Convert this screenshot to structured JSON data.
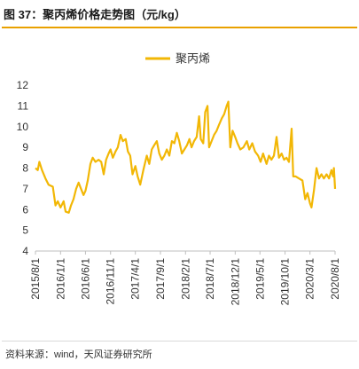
{
  "header": {
    "title": "图 37：聚丙烯价格走势图（元/kg）"
  },
  "footer": {
    "source": "资料来源：wind，天风证券研究所"
  },
  "chart_data": {
    "type": "line",
    "title": "",
    "xlabel": "",
    "ylabel": "",
    "ylim": [
      4,
      12
    ],
    "yticks": [
      4,
      5,
      6,
      7,
      8,
      9,
      10,
      11,
      12
    ],
    "xticks": [
      "2015/8/1",
      "2016/1/1",
      "2016/6/1",
      "2016/11/1",
      "2017/4/1",
      "2017/9/1",
      "2018/2/1",
      "2018/7/1",
      "2018/12/1",
      "2019/5/1",
      "2019/10/1",
      "2020/3/1",
      "2020/8/1"
    ],
    "grid": false,
    "legend": "top",
    "color": "#f2b705",
    "series": [
      {
        "name": "聚丙烯",
        "points": [
          [
            "2015/8/1",
            8.0
          ],
          [
            "2015/8/15",
            7.9
          ],
          [
            "2015/8/25",
            8.3
          ],
          [
            "2015/9/10",
            7.9
          ],
          [
            "2015/10/1",
            7.5
          ],
          [
            "2015/10/20",
            7.2
          ],
          [
            "2015/11/15",
            7.1
          ],
          [
            "2015/12/1",
            6.2
          ],
          [
            "2015/12/15",
            6.4
          ],
          [
            "2016/1/1",
            6.1
          ],
          [
            "2016/1/20",
            6.4
          ],
          [
            "2016/2/1",
            5.9
          ],
          [
            "2016/2/20",
            5.85
          ],
          [
            "2016/3/5",
            6.2
          ],
          [
            "2016/3/20",
            6.5
          ],
          [
            "2016/4/5",
            7.0
          ],
          [
            "2016/4/20",
            7.3
          ],
          [
            "2016/5/5",
            7.0
          ],
          [
            "2016/5/20",
            6.7
          ],
          [
            "2016/6/1",
            6.9
          ],
          [
            "2016/6/15",
            7.4
          ],
          [
            "2016/7/1",
            8.2
          ],
          [
            "2016/7/15",
            8.5
          ],
          [
            "2016/8/1",
            8.3
          ],
          [
            "2016/8/20",
            8.4
          ],
          [
            "2016/9/5",
            8.3
          ],
          [
            "2016/9/20",
            7.7
          ],
          [
            "2016/10/5",
            8.4
          ],
          [
            "2016/10/20",
            8.7
          ],
          [
            "2016/11/1",
            8.9
          ],
          [
            "2016/11/15",
            8.5
          ],
          [
            "2016/12/1",
            8.8
          ],
          [
            "2016/12/15",
            9.0
          ],
          [
            "2017/1/1",
            9.6
          ],
          [
            "2017/1/15",
            9.3
          ],
          [
            "2017/2/1",
            9.4
          ],
          [
            "2017/2/15",
            8.8
          ],
          [
            "2017/3/1",
            8.6
          ],
          [
            "2017/3/15",
            7.7
          ],
          [
            "2017/4/1",
            8.1
          ],
          [
            "2017/4/15",
            7.6
          ],
          [
            "2017/5/1",
            7.2
          ],
          [
            "2017/5/20",
            7.9
          ],
          [
            "2017/6/10",
            8.6
          ],
          [
            "2017/6/25",
            8.2
          ],
          [
            "2017/7/10",
            8.9
          ],
          [
            "2017/7/25",
            9.1
          ],
          [
            "2017/8/10",
            9.3
          ],
          [
            "2017/8/25",
            8.7
          ],
          [
            "2017/9/10",
            8.4
          ],
          [
            "2017/9/25",
            8.6
          ],
          [
            "2017/10/10",
            8.9
          ],
          [
            "2017/10/25",
            8.6
          ],
          [
            "2017/11/10",
            9.3
          ],
          [
            "2017/11/25",
            9.2
          ],
          [
            "2017/12/10",
            9.7
          ],
          [
            "2017/12/25",
            9.3
          ],
          [
            "2018/1/10",
            8.7
          ],
          [
            "2018/1/25",
            8.9
          ],
          [
            "2018/2/10",
            9.1
          ],
          [
            "2018/2/25",
            9.4
          ],
          [
            "2018/3/10",
            9.0
          ],
          [
            "2018/3/25",
            9.3
          ],
          [
            "2018/4/10",
            9.5
          ],
          [
            "2018/4/25",
            10.5
          ],
          [
            "2018/5/5",
            9.4
          ],
          [
            "2018/5/20",
            9.2
          ],
          [
            "2018/6/1",
            10.7
          ],
          [
            "2018/6/15",
            11.0
          ],
          [
            "2018/6/25",
            9.0
          ],
          [
            "2018/7/10",
            9.3
          ],
          [
            "2018/7/25",
            9.6
          ],
          [
            "2018/8/10",
            9.8
          ],
          [
            "2018/8/25",
            10.1
          ],
          [
            "2018/9/10",
            10.4
          ],
          [
            "2018/9/25",
            10.6
          ],
          [
            "2018/10/10",
            11.0
          ],
          [
            "2018/10/20",
            11.2
          ],
          [
            "2018/11/1",
            9.0
          ],
          [
            "2018/11/15",
            9.8
          ],
          [
            "2018/12/1",
            9.5
          ],
          [
            "2018/12/15",
            9.2
          ],
          [
            "2019/1/1",
            8.9
          ],
          [
            "2019/1/20",
            9.0
          ],
          [
            "2019/2/10",
            9.3
          ],
          [
            "2019/2/25",
            8.9
          ],
          [
            "2019/3/15",
            9.2
          ],
          [
            "2019/4/1",
            8.8
          ],
          [
            "2019/4/20",
            8.6
          ],
          [
            "2019/5/5",
            8.3
          ],
          [
            "2019/5/20",
            8.7
          ],
          [
            "2019/6/10",
            8.2
          ],
          [
            "2019/6/25",
            8.6
          ],
          [
            "2019/7/10",
            8.4
          ],
          [
            "2019/7/25",
            8.6
          ],
          [
            "2019/8/10",
            9.5
          ],
          [
            "2019/8/25",
            8.5
          ],
          [
            "2019/9/10",
            8.7
          ],
          [
            "2019/9/25",
            8.4
          ],
          [
            "2019/10/10",
            8.5
          ],
          [
            "2019/10/25",
            8.3
          ],
          [
            "2019/11/10",
            9.9
          ],
          [
            "2019/11/20",
            7.6
          ],
          [
            "2019/12/5",
            7.6
          ],
          [
            "2019/12/25",
            7.5
          ],
          [
            "2020/1/15",
            7.4
          ],
          [
            "2020/2/1",
            6.5
          ],
          [
            "2020/2/15",
            6.8
          ],
          [
            "2020/3/1",
            6.3
          ],
          [
            "2020/3/10",
            6.1
          ],
          [
            "2020/3/25",
            6.9
          ],
          [
            "2020/4/10",
            8.0
          ],
          [
            "2020/4/25",
            7.5
          ],
          [
            "2020/5/10",
            7.7
          ],
          [
            "2020/5/25",
            7.5
          ],
          [
            "2020/6/10",
            7.7
          ],
          [
            "2020/6/25",
            7.5
          ],
          [
            "2020/7/10",
            7.9
          ],
          [
            "2020/7/20",
            7.6
          ],
          [
            "2020/7/25",
            8.0
          ],
          [
            "2020/8/1",
            7.0
          ]
        ]
      }
    ]
  }
}
